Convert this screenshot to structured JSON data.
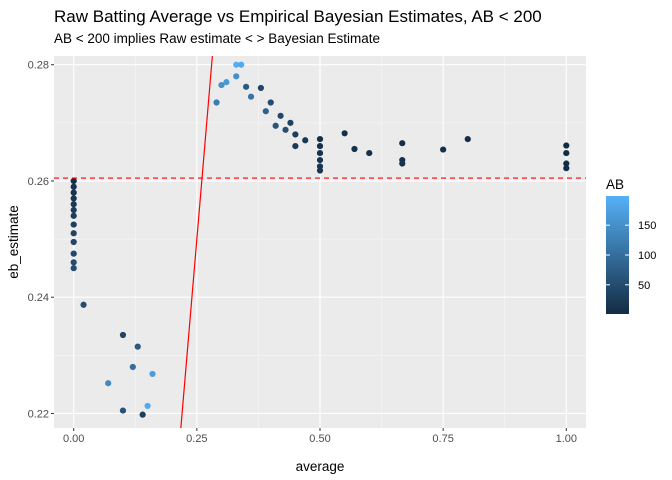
{
  "chart_data": {
    "type": "scatter",
    "title": "Raw Batting Average vs Empirical Bayesian Estimates, AB < 200",
    "subtitle": "AB < 200 implies Raw estimate < > Bayesian Estimate",
    "xlabel": "average",
    "ylabel": "eb_estimate",
    "xlim": [
      -0.04,
      1.04
    ],
    "ylim": [
      0.2175,
      0.2815
    ],
    "x_ticks": [
      0.0,
      0.25,
      0.5,
      0.75,
      1.0
    ],
    "x_tick_labels": [
      "0.00",
      "0.25",
      "0.50",
      "0.75",
      "1.00"
    ],
    "y_ticks": [
      0.22,
      0.24,
      0.26,
      0.28
    ],
    "y_tick_labels": [
      "0.22",
      "0.24",
      "0.26",
      "0.28"
    ],
    "background": "grey-panel",
    "grid": true,
    "reference_lines": {
      "hline": {
        "y": 0.2605,
        "color": "#ff0000",
        "style": "dashed"
      },
      "abline": {
        "intercept": 0,
        "slope": 1,
        "color": "#ff0000",
        "style": "solid"
      }
    },
    "color_scale": {
      "variable": "AB",
      "title": "AB",
      "low_color": "#132b43",
      "high_color": "#56b1f7",
      "range": [
        1,
        199
      ],
      "ticks": [
        50,
        100,
        150
      ],
      "tick_labels": [
        "50",
        "100",
        "150"
      ],
      "legend_position": "right"
    },
    "points": [
      {
        "x": 0.0,
        "y": 0.26,
        "ab": 8
      },
      {
        "x": 0.0,
        "y": 0.259,
        "ab": 12
      },
      {
        "x": 0.0,
        "y": 0.258,
        "ab": 15
      },
      {
        "x": 0.0,
        "y": 0.257,
        "ab": 18
      },
      {
        "x": 0.0,
        "y": 0.256,
        "ab": 22
      },
      {
        "x": 0.0,
        "y": 0.255,
        "ab": 25
      },
      {
        "x": 0.0,
        "y": 0.254,
        "ab": 28
      },
      {
        "x": 0.0,
        "y": 0.2525,
        "ab": 32
      },
      {
        "x": 0.0,
        "y": 0.251,
        "ab": 36
      },
      {
        "x": 0.0,
        "y": 0.2495,
        "ab": 40
      },
      {
        "x": 0.0,
        "y": 0.2475,
        "ab": 44
      },
      {
        "x": 0.0,
        "y": 0.246,
        "ab": 48
      },
      {
        "x": 0.0,
        "y": 0.245,
        "ab": 52
      },
      {
        "x": 0.02,
        "y": 0.2387,
        "ab": 50
      },
      {
        "x": 0.07,
        "y": 0.2252,
        "ab": 140
      },
      {
        "x": 0.1,
        "y": 0.2205,
        "ab": 60
      },
      {
        "x": 0.14,
        "y": 0.2198,
        "ab": 30
      },
      {
        "x": 0.15,
        "y": 0.2213,
        "ab": 190
      },
      {
        "x": 0.12,
        "y": 0.228,
        "ab": 100
      },
      {
        "x": 0.13,
        "y": 0.2315,
        "ab": 70
      },
      {
        "x": 0.16,
        "y": 0.2268,
        "ab": 170
      },
      {
        "x": 0.1,
        "y": 0.2335,
        "ab": 40
      },
      {
        "x": 0.29,
        "y": 0.2735,
        "ab": 120
      },
      {
        "x": 0.3,
        "y": 0.2765,
        "ab": 150
      },
      {
        "x": 0.31,
        "y": 0.277,
        "ab": 165
      },
      {
        "x": 0.33,
        "y": 0.28,
        "ab": 195
      },
      {
        "x": 0.34,
        "y": 0.28,
        "ab": 185
      },
      {
        "x": 0.33,
        "y": 0.278,
        "ab": 150
      },
      {
        "x": 0.35,
        "y": 0.2762,
        "ab": 70
      },
      {
        "x": 0.38,
        "y": 0.276,
        "ab": 40
      },
      {
        "x": 0.36,
        "y": 0.2745,
        "ab": 110
      },
      {
        "x": 0.4,
        "y": 0.2735,
        "ab": 50
      },
      {
        "x": 0.39,
        "y": 0.272,
        "ab": 80
      },
      {
        "x": 0.42,
        "y": 0.2712,
        "ab": 45
      },
      {
        "x": 0.44,
        "y": 0.27,
        "ab": 35
      },
      {
        "x": 0.43,
        "y": 0.2688,
        "ab": 55
      },
      {
        "x": 0.45,
        "y": 0.268,
        "ab": 30
      },
      {
        "x": 0.41,
        "y": 0.2695,
        "ab": 65
      },
      {
        "x": 0.47,
        "y": 0.267,
        "ab": 20
      },
      {
        "x": 0.45,
        "y": 0.266,
        "ab": 25
      },
      {
        "x": 0.5,
        "y": 0.2672,
        "ab": 8
      },
      {
        "x": 0.5,
        "y": 0.266,
        "ab": 10
      },
      {
        "x": 0.5,
        "y": 0.2648,
        "ab": 12
      },
      {
        "x": 0.5,
        "y": 0.2636,
        "ab": 14
      },
      {
        "x": 0.5,
        "y": 0.2625,
        "ab": 16
      },
      {
        "x": 0.5,
        "y": 0.2618,
        "ab": 18
      },
      {
        "x": 0.55,
        "y": 0.2682,
        "ab": 10
      },
      {
        "x": 0.57,
        "y": 0.2655,
        "ab": 12
      },
      {
        "x": 0.6,
        "y": 0.2648,
        "ab": 10
      },
      {
        "x": 0.667,
        "y": 0.2665,
        "ab": 6
      },
      {
        "x": 0.667,
        "y": 0.2636,
        "ab": 9
      },
      {
        "x": 0.667,
        "y": 0.263,
        "ab": 12
      },
      {
        "x": 0.75,
        "y": 0.2654,
        "ab": 8
      },
      {
        "x": 0.8,
        "y": 0.2672,
        "ab": 5
      },
      {
        "x": 1.0,
        "y": 0.2661,
        "ab": 3
      },
      {
        "x": 1.0,
        "y": 0.2648,
        "ab": 4
      },
      {
        "x": 1.0,
        "y": 0.263,
        "ab": 5
      },
      {
        "x": 1.0,
        "y": 0.2622,
        "ab": 6
      }
    ]
  }
}
